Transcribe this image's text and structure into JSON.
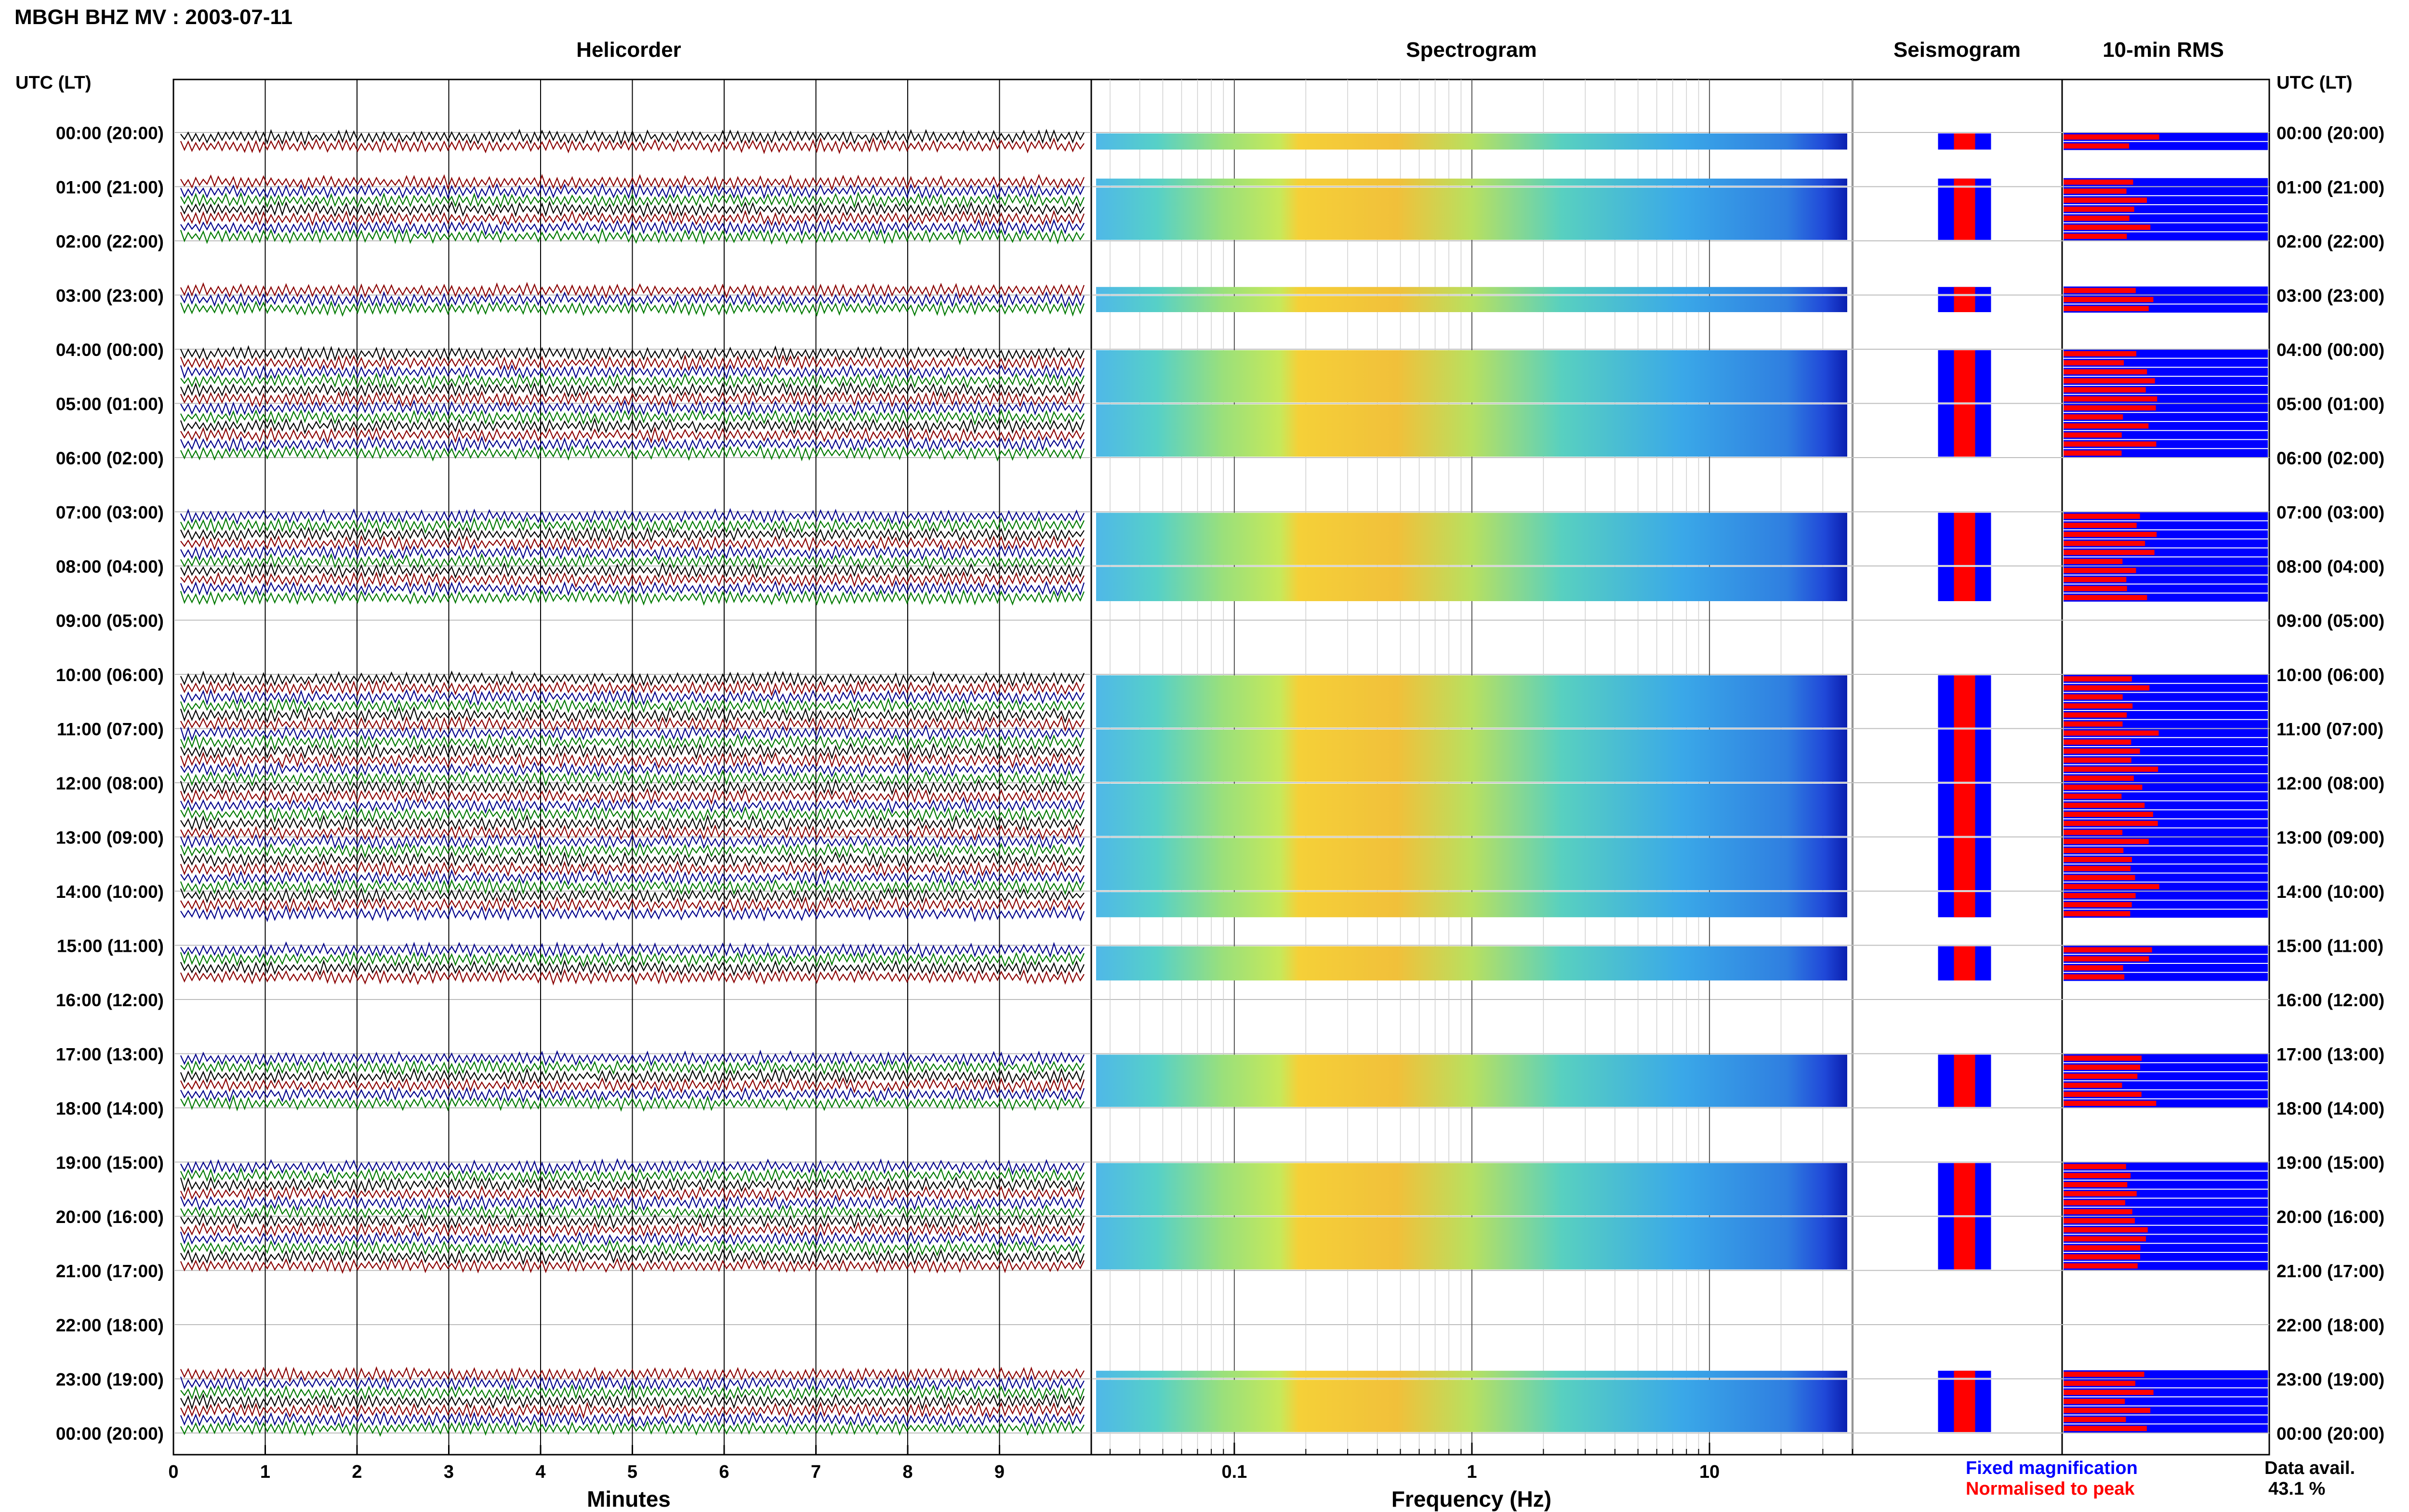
{
  "header": {
    "title": "MBGH BHZ MV : 2003-07-11",
    "utc_lt_label": "UTC (LT)"
  },
  "panels": {
    "helicorder": "Helicorder",
    "spectrogram": "Spectrogram",
    "seismogram": "Seismogram",
    "rms": "10-min RMS"
  },
  "axes": {
    "helicorder_xlabel": "Minutes",
    "spectrogram_xlabel": "Frequency (Hz)",
    "minute_ticks": [
      "0",
      "1",
      "2",
      "3",
      "4",
      "5",
      "6",
      "7",
      "8",
      "9"
    ],
    "freq_ticks": [
      "0.1",
      "1",
      "10"
    ]
  },
  "legend": {
    "fixed": "Fixed magnification",
    "normalised": "Normalised to peak",
    "fixed_color": "#0000ff",
    "normalised_color": "#ff0000"
  },
  "availability": {
    "label": "Data avail.",
    "value": "43.1 %"
  },
  "colors": {
    "trace_black": "#000000",
    "trace_red": "#8b0000",
    "trace_blue": "#00008b",
    "trace_green": "#007a00",
    "rms_blue": "#0000ff",
    "rms_red": "#ff0000"
  },
  "chart_data": {
    "type": "heatmap",
    "title": "MBGH BHZ MV : 2003-07-11",
    "xlabel": "Minutes",
    "xlim": [
      0,
      10
    ],
    "hour_labels": [
      "00:00 (20:00)",
      "01:00 (21:00)",
      "02:00 (22:00)",
      "03:00 (23:00)",
      "04:00 (00:00)",
      "05:00 (01:00)",
      "06:00 (02:00)",
      "07:00 (03:00)",
      "08:00 (04:00)",
      "09:00 (05:00)",
      "10:00 (06:00)",
      "11:00 (07:00)",
      "12:00 (08:00)",
      "13:00 (09:00)",
      "14:00 (10:00)",
      "15:00 (11:00)",
      "16:00 (12:00)",
      "17:00 (13:00)",
      "18:00 (14:00)",
      "19:00 (15:00)",
      "20:00 (16:00)",
      "21:00 (17:00)",
      "22:00 (18:00)",
      "23:00 (19:00)",
      "00:00 (20:00)"
    ],
    "data_rows": [
      {
        "hour": 0,
        "sub": [
          0,
          1
        ]
      },
      {
        "hour": 0,
        "sub": [
          5
        ]
      },
      {
        "hour": 1,
        "sub": [
          0,
          1,
          2,
          3,
          4,
          5
        ]
      },
      {
        "hour": 2,
        "sub": [
          5
        ]
      },
      {
        "hour": 3,
        "sub": [
          0,
          1
        ]
      },
      {
        "hour": 4,
        "sub": [
          0,
          1,
          2,
          3,
          4,
          5
        ]
      },
      {
        "hour": 5,
        "sub": [
          0,
          1,
          2,
          3,
          4,
          5
        ]
      },
      {
        "hour": 7,
        "sub": [
          0,
          1,
          2,
          3,
          4,
          5
        ]
      },
      {
        "hour": 8,
        "sub": [
          0,
          1,
          2,
          3
        ]
      },
      {
        "hour": 10,
        "sub": [
          0,
          1,
          2,
          3,
          4,
          5
        ]
      },
      {
        "hour": 11,
        "sub": [
          0,
          1,
          2,
          3,
          4,
          5
        ]
      },
      {
        "hour": 12,
        "sub": [
          0,
          1,
          2,
          3,
          4,
          5
        ]
      },
      {
        "hour": 13,
        "sub": [
          0,
          1,
          2,
          3,
          4,
          5
        ]
      },
      {
        "hour": 14,
        "sub": [
          0,
          1,
          2
        ]
      },
      {
        "hour": 15,
        "sub": [
          0,
          1,
          2,
          3
        ]
      },
      {
        "hour": 17,
        "sub": [
          0,
          1,
          2,
          3,
          4,
          5
        ]
      },
      {
        "hour": 19,
        "sub": [
          0,
          1,
          2,
          3,
          4,
          5
        ]
      },
      {
        "hour": 20,
        "sub": [
          0,
          1,
          2,
          3,
          4,
          5
        ]
      },
      {
        "hour": 22,
        "sub": [
          5
        ]
      },
      {
        "hour": 23,
        "sub": [
          0,
          1,
          2,
          3,
          4,
          5
        ]
      }
    ],
    "freq_range_hz": [
      0.025,
      40
    ],
    "freq_ticks": [
      0.1,
      1,
      10
    ],
    "legend": [
      "Fixed magnification",
      "Normalised to peak"
    ],
    "data_availability_percent": 43.1
  }
}
